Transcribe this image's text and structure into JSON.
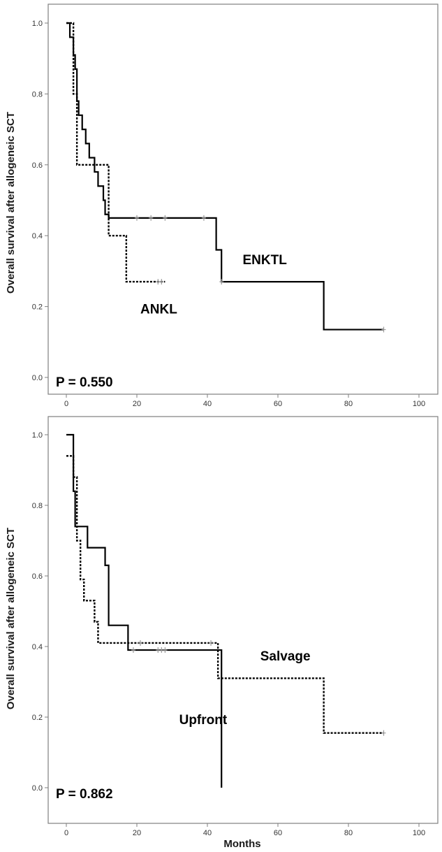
{
  "chart_data": [
    {
      "type": "line",
      "subtype": "kaplan-meier step",
      "ylabel": "Overall survival after allogeneic SCT",
      "xlabel": "",
      "xlim": [
        -5,
        106
      ],
      "ylim": [
        -0.05,
        1.05
      ],
      "x_ticks": [
        0,
        20,
        40,
        60,
        80,
        100
      ],
      "y_ticks": [
        0.0,
        0.2,
        0.4,
        0.6,
        0.8,
        1.0
      ],
      "y_tick_labels": [
        "0.0",
        "0.2",
        "0.4",
        "0.6",
        "0.8",
        "1.0"
      ],
      "p_value": "P = 0.550",
      "series": [
        {
          "name": "ENKTL",
          "style": "solid",
          "label_at": [
            50,
            0.32
          ],
          "points": [
            [
              0,
              1.0
            ],
            [
              1,
              0.96
            ],
            [
              2,
              0.91
            ],
            [
              2.5,
              0.87
            ],
            [
              3,
              0.78
            ],
            [
              3.5,
              0.74
            ],
            [
              4.5,
              0.7
            ],
            [
              5.5,
              0.66
            ],
            [
              6.5,
              0.62
            ],
            [
              8,
              0.58
            ],
            [
              9,
              0.54
            ],
            [
              10.5,
              0.5
            ],
            [
              11,
              0.46
            ],
            [
              12,
              0.45
            ],
            [
              42.5,
              0.36
            ],
            [
              44,
              0.27
            ],
            [
              73,
              0.135
            ],
            [
              90,
              0.135
            ]
          ],
          "censored": [
            [
              20,
              0.45
            ],
            [
              24,
              0.45
            ],
            [
              28,
              0.45
            ],
            [
              39,
              0.45
            ],
            [
              44,
              0.27
            ],
            [
              90,
              0.135
            ]
          ]
        },
        {
          "name": "ANKL",
          "style": "dotted",
          "label_at": [
            21,
            0.18
          ],
          "points": [
            [
              0,
              1.0
            ],
            [
              2,
              0.8
            ],
            [
              3,
              0.6
            ],
            [
              11,
              0.6
            ],
            [
              12,
              0.4
            ],
            [
              17,
              0.27
            ],
            [
              28,
              0.27
            ]
          ],
          "censored": [
            [
              26,
              0.27
            ],
            [
              27,
              0.27
            ]
          ]
        }
      ]
    },
    {
      "type": "line",
      "subtype": "kaplan-meier step",
      "ylabel": "Overall survival after allogeneic SCT",
      "xlabel": "Months",
      "xlim": [
        -5,
        106
      ],
      "ylim": [
        -0.05,
        1.05
      ],
      "x_ticks": [
        0,
        20,
        40,
        60,
        80,
        100
      ],
      "y_ticks": [
        0.0,
        0.2,
        0.4,
        0.6,
        0.8,
        1.0
      ],
      "y_tick_labels": [
        "0.0",
        "0.2",
        "0.4",
        "0.6",
        "0.8",
        "1.0"
      ],
      "p_value": "P = 0.862",
      "series": [
        {
          "name": "Upfront",
          "style": "solid",
          "label_at": [
            32,
            0.18
          ],
          "points": [
            [
              0,
              1.0
            ],
            [
              2,
              0.84
            ],
            [
              2.5,
              0.74
            ],
            [
              6,
              0.68
            ],
            [
              11,
              0.63
            ],
            [
              12,
              0.46
            ],
            [
              17.5,
              0.39
            ],
            [
              44,
              0.0
            ]
          ],
          "censored": [
            [
              19,
              0.39
            ],
            [
              26,
              0.39
            ],
            [
              27,
              0.39
            ],
            [
              28,
              0.39
            ]
          ]
        },
        {
          "name": "Salvage",
          "style": "dotted",
          "label_at": [
            55,
            0.36
          ],
          "points": [
            [
              0,
              0.94
            ],
            [
              2,
              0.88
            ],
            [
              3,
              0.7
            ],
            [
              4,
              0.59
            ],
            [
              5,
              0.53
            ],
            [
              8,
              0.47
            ],
            [
              9,
              0.41
            ],
            [
              43,
              0.31
            ],
            [
              73,
              0.155
            ],
            [
              90,
              0.155
            ]
          ],
          "censored": [
            [
              21,
              0.41
            ],
            [
              41,
              0.41
            ],
            [
              90,
              0.155
            ]
          ]
        }
      ]
    }
  ]
}
